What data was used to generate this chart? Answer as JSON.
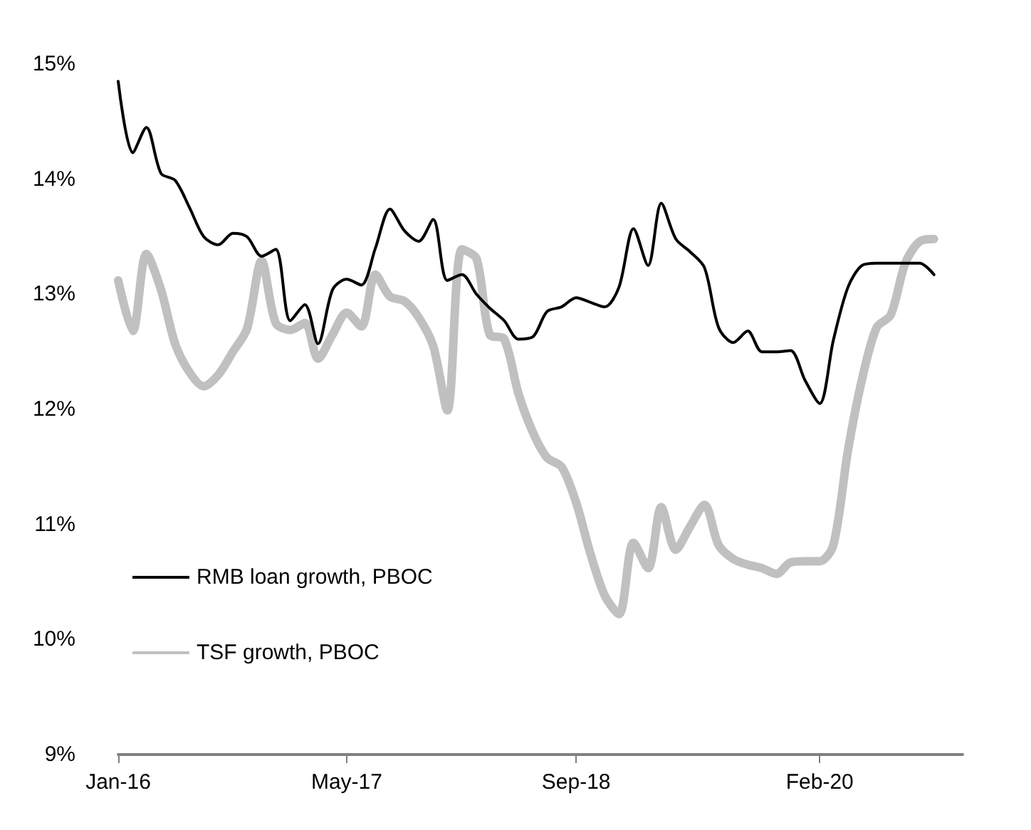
{
  "chart_data": {
    "type": "line",
    "x": [
      "2016-01",
      "2016-02",
      "2016-03",
      "2016-04",
      "2016-05",
      "2016-06",
      "2016-07",
      "2016-08",
      "2016-09",
      "2016-10",
      "2016-11",
      "2016-12",
      "2017-01",
      "2017-02",
      "2017-03",
      "2017-04",
      "2017-05",
      "2017-06",
      "2017-07",
      "2017-08",
      "2017-09",
      "2017-10",
      "2017-11",
      "2017-12",
      "2018-01",
      "2018-02",
      "2018-03",
      "2018-04",
      "2018-05",
      "2018-06",
      "2018-07",
      "2018-08",
      "2018-09",
      "2018-10",
      "2018-11",
      "2018-12",
      "2019-01",
      "2019-02",
      "2019-03",
      "2019-04",
      "2019-05",
      "2019-06",
      "2019-07",
      "2019-08",
      "2019-09",
      "2019-10",
      "2019-11",
      "2019-12",
      "2020-01",
      "2020-02",
      "2020-03",
      "2020-04",
      "2020-05",
      "2020-06",
      "2020-07",
      "2020-08",
      "2020-09",
      "2020-10"
    ],
    "series": [
      {
        "name": "RMB loan growth, PBOC",
        "color": "#000000",
        "values": [
          14.85,
          14.23,
          14.45,
          14.05,
          13.99,
          13.75,
          13.5,
          13.43,
          13.53,
          13.5,
          13.33,
          13.39,
          12.77,
          12.91,
          12.57,
          13.04,
          13.13,
          13.08,
          13.4,
          13.74,
          13.55,
          13.46,
          13.65,
          13.12,
          13.17,
          13.0,
          12.88,
          12.77,
          12.61,
          12.63,
          12.85,
          12.89,
          12.97,
          12.93,
          12.89,
          13.06,
          13.57,
          13.25,
          13.79,
          13.48,
          13.37,
          13.23,
          12.71,
          12.58,
          12.68,
          12.5,
          12.5,
          12.51,
          12.25,
          12.05,
          12.6,
          13.06,
          13.25,
          13.27,
          13.27,
          13.27,
          13.27,
          13.17
        ]
      },
      {
        "name": "TSF growth, PBOC",
        "color": "#c0c0c0",
        "values": [
          13.12,
          12.68,
          13.35,
          13.04,
          12.57,
          12.32,
          12.2,
          12.3,
          12.5,
          12.7,
          13.29,
          12.75,
          12.69,
          12.75,
          12.44,
          12.65,
          12.84,
          12.72,
          13.17,
          12.98,
          12.94,
          12.8,
          12.55,
          11.99,
          13.39,
          13.31,
          12.65,
          12.61,
          12.14,
          11.8,
          11.58,
          11.5,
          11.19,
          10.75,
          10.38,
          10.22,
          10.84,
          10.62,
          11.15,
          10.78,
          10.98,
          11.17,
          10.82,
          10.7,
          10.65,
          10.62,
          10.57,
          10.67,
          10.68,
          10.68,
          10.82,
          11.64,
          12.26,
          12.71,
          12.82,
          13.27,
          13.46,
          13.48
        ]
      }
    ],
    "xlim": [
      "2016-01",
      "2020-12"
    ],
    "xticks": [
      {
        "value": "2016-01",
        "label": "Jan-16"
      },
      {
        "value": "2017-05",
        "label": "May-17"
      },
      {
        "value": "2018-09",
        "label": "Sep-18"
      },
      {
        "value": "2020-02",
        "label": "Feb-20"
      }
    ],
    "ylim": [
      9,
      15
    ],
    "yticks": [
      {
        "value": 9,
        "label": "9%"
      },
      {
        "value": 10,
        "label": "10%"
      },
      {
        "value": 11,
        "label": "11%"
      },
      {
        "value": 12,
        "label": "12%"
      },
      {
        "value": 13,
        "label": "13%"
      },
      {
        "value": 14,
        "label": "14%"
      },
      {
        "value": 15,
        "label": "15%"
      }
    ],
    "grid": false,
    "legend": "bottom left",
    "marker": "none",
    "line_style": "solid"
  }
}
